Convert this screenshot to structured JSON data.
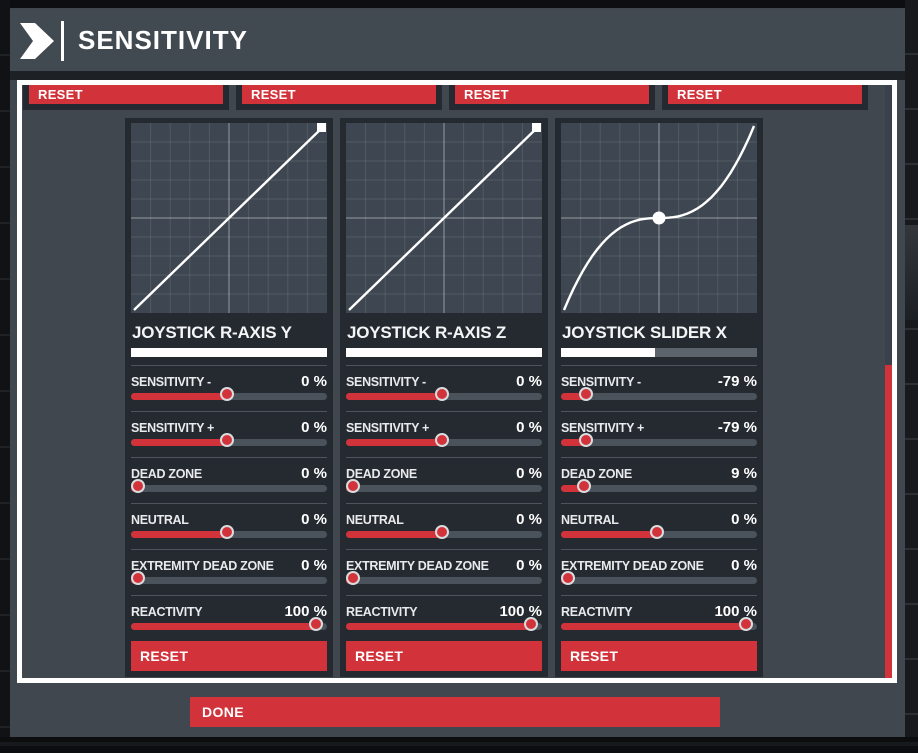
{
  "header": {
    "title": "SENSITIVITY"
  },
  "top_reset_buttons": [
    "RESET",
    "RESET",
    "RESET",
    "RESET"
  ],
  "done_label": "DONE",
  "colors": {
    "accent_red": "#d2333a",
    "dialog_bg": "#40474f",
    "panel_bg": "#252a31",
    "graph_bg": "#3e4751",
    "white": "#ffffff"
  },
  "chart_data": [
    {
      "type": "line",
      "title": "JOYSTICK R-AXIS Y",
      "curve": "linear",
      "x_range": [
        -100,
        100
      ],
      "y_range": [
        -100,
        100
      ],
      "grid": "10x10",
      "marker": {
        "shape": "square",
        "x": 100,
        "y": 100
      }
    },
    {
      "type": "line",
      "title": "JOYSTICK R-AXIS Z",
      "curve": "linear",
      "x_range": [
        -100,
        100
      ],
      "y_range": [
        -100,
        100
      ],
      "grid": "10x10",
      "marker": {
        "shape": "square",
        "x": 100,
        "y": 100
      }
    },
    {
      "type": "line",
      "title": "JOYSTICK SLIDER X",
      "curve": "s-curve",
      "exponent": 2.5,
      "x_range": [
        -100,
        100
      ],
      "y_range": [
        -100,
        100
      ],
      "grid": "10x10",
      "marker": {
        "shape": "circle",
        "x": 0,
        "y": 0
      }
    }
  ],
  "panels": [
    {
      "title": "JOYSTICK R-AXIS Y",
      "input_fill_pct": 100,
      "curve": {
        "type": "linear",
        "marker": "square"
      },
      "reset_label": "RESET",
      "sliders": [
        {
          "label": "SENSITIVITY -",
          "display": "0 %",
          "value": 0,
          "min": -100,
          "max": 100
        },
        {
          "label": "SENSITIVITY +",
          "display": "0 %",
          "value": 0,
          "min": -100,
          "max": 100
        },
        {
          "label": "DEAD ZONE",
          "display": "0 %",
          "value": 0,
          "min": 0,
          "max": 100
        },
        {
          "label": "NEUTRAL",
          "display": "0 %",
          "value": 0,
          "min": -100,
          "max": 100
        },
        {
          "label": "EXTREMITY DEAD ZONE",
          "display": "0 %",
          "value": 0,
          "min": 0,
          "max": 100
        },
        {
          "label": "REACTIVITY",
          "display": "100 %",
          "value": 100,
          "min": 0,
          "max": 100
        }
      ]
    },
    {
      "title": "JOYSTICK R-AXIS Z",
      "input_fill_pct": 100,
      "curve": {
        "type": "linear",
        "marker": "square"
      },
      "reset_label": "RESET",
      "sliders": [
        {
          "label": "SENSITIVITY -",
          "display": "0 %",
          "value": 0,
          "min": -100,
          "max": 100
        },
        {
          "label": "SENSITIVITY +",
          "display": "0 %",
          "value": 0,
          "min": -100,
          "max": 100
        },
        {
          "label": "DEAD ZONE",
          "display": "0 %",
          "value": 0,
          "min": 0,
          "max": 100
        },
        {
          "label": "NEUTRAL",
          "display": "0 %",
          "value": 0,
          "min": -100,
          "max": 100
        },
        {
          "label": "EXTREMITY DEAD ZONE",
          "display": "0 %",
          "value": 0,
          "min": 0,
          "max": 100
        },
        {
          "label": "REACTIVITY",
          "display": "100 %",
          "value": 100,
          "min": 0,
          "max": 100
        }
      ]
    },
    {
      "title": "JOYSTICK SLIDER X",
      "input_fill_pct": 48,
      "curve": {
        "type": "s-curve",
        "exponent": 2.5,
        "marker": "circle"
      },
      "reset_label": "RESET",
      "sliders": [
        {
          "label": "SENSITIVITY -",
          "display": "-79 %",
          "value": -79,
          "min": -100,
          "max": 100
        },
        {
          "label": "SENSITIVITY +",
          "display": "-79 %",
          "value": -79,
          "min": -100,
          "max": 100
        },
        {
          "label": "DEAD ZONE",
          "display": "9 %",
          "value": 9,
          "min": 0,
          "max": 100
        },
        {
          "label": "NEUTRAL",
          "display": "0 %",
          "value": 0,
          "min": -100,
          "max": 100
        },
        {
          "label": "EXTREMITY DEAD ZONE",
          "display": "0 %",
          "value": 0,
          "min": 0,
          "max": 100
        },
        {
          "label": "REACTIVITY",
          "display": "100 %",
          "value": 100,
          "min": 0,
          "max": 100
        }
      ]
    }
  ]
}
